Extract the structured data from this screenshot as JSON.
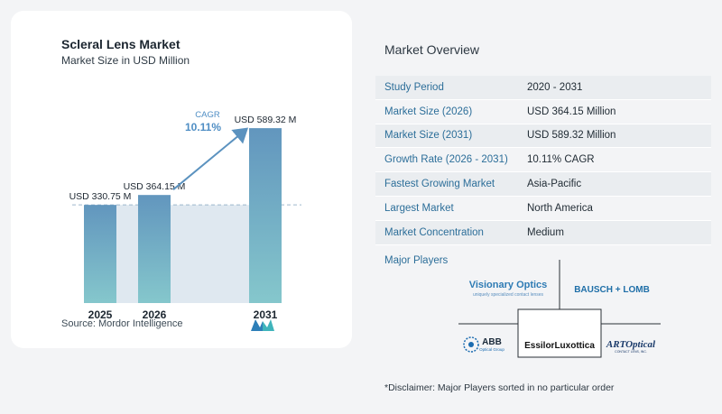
{
  "chart_data": {
    "type": "bar",
    "title": "Scleral Lens Market",
    "subtitle": "Market Size in USD Million",
    "categories": [
      "2025",
      "2026",
      "2031"
    ],
    "values": [
      330.75,
      364.15,
      589.32
    ],
    "value_labels": [
      "USD 330.75 M",
      "USD 364.15 M",
      "USD 589.32 M"
    ],
    "cagr_label": "CAGR",
    "cagr_value": "10.11%",
    "ylim": [
      0,
      620
    ],
    "colors": {
      "bar_top": "#6296be",
      "bar_bottom": "#85c7cc",
      "band": "#dfe8f0",
      "arrow": "#5b92bf",
      "cagr": "#4f8ec4"
    }
  },
  "source": "Source:  Mordor Intelligence",
  "overview": {
    "title": "Market Overview",
    "rows": [
      {
        "key": "Study Period",
        "value": "2020 - 2031"
      },
      {
        "key": "Market Size (2026)",
        "value": "USD 364.15 Million"
      },
      {
        "key": "Market Size (2031)",
        "value": "USD 589.32 Million"
      },
      {
        "key": "Growth Rate (2026 - 2031)",
        "value": "10.11% CAGR"
      },
      {
        "key": "Fastest Growing Market",
        "value": "Asia-Pacific"
      },
      {
        "key": "Largest Market",
        "value": "North America"
      },
      {
        "key": "Market Concentration",
        "value": "Medium"
      }
    ]
  },
  "players": {
    "label": "Major Players",
    "logos": {
      "visionary": "Visionary Optics",
      "visionary_tag": "uniquely specialized contact lenses",
      "bausch": "BAUSCH + LOMB",
      "abb": "ABB",
      "abb_sub": "Optical Group",
      "essilor": "EssilorLuxottica",
      "art": "ARTOptical",
      "art_sub": "CONTACT LENS, INC."
    }
  },
  "disclaimer": "*Disclaimer: Major Players sorted in no particular order"
}
